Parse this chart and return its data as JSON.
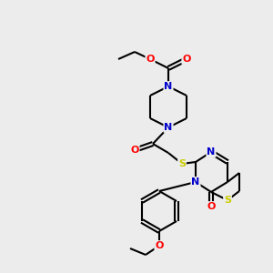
{
  "bg_color": "#ececec",
  "atom_colors": {
    "C": "#000000",
    "N": "#0000cc",
    "O": "#ff0000",
    "S": "#cccc00"
  },
  "bond_color": "#000000",
  "bond_width": 1.5,
  "figsize": [
    3.0,
    3.0
  ],
  "dpi": 100,
  "xlim": [
    0,
    300
  ],
  "ylim": [
    0,
    300
  ]
}
